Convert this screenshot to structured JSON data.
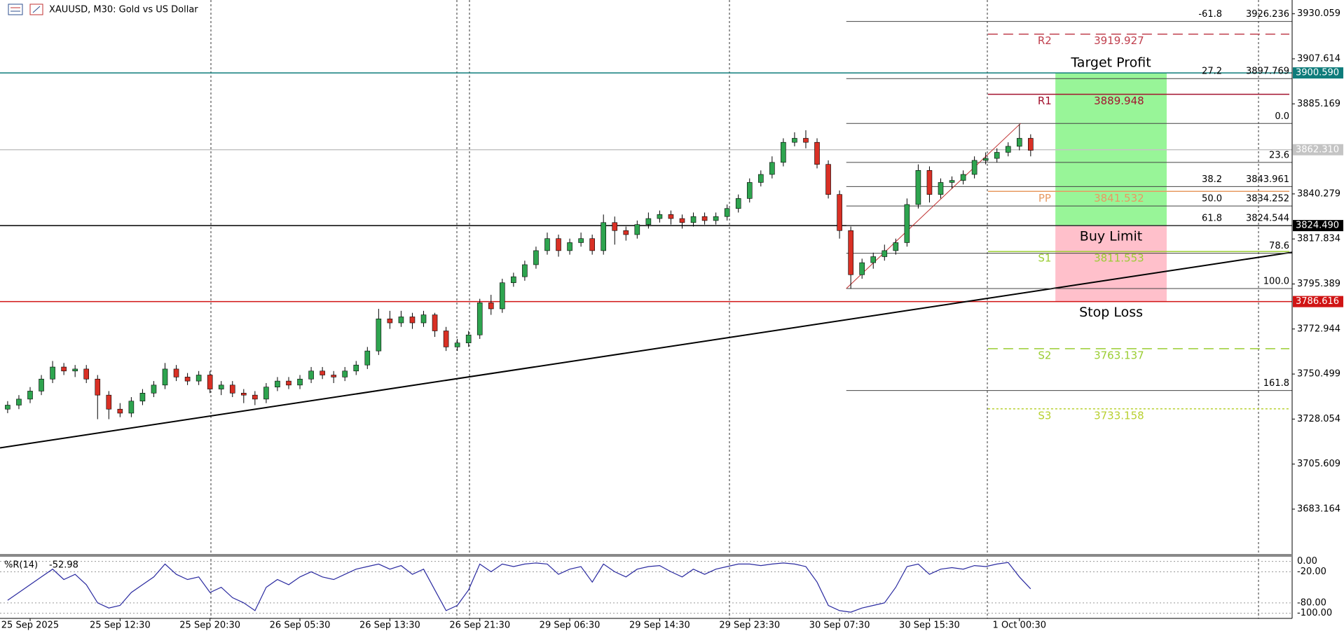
{
  "chart_data": {
    "type": "candlestick",
    "title": "XAUUSD, M30:  Gold vs US Dollar",
    "xlim": [
      -0.68,
      114.26
    ],
    "ylim": [
      3660.12,
      3936.93
    ],
    "xticks": [
      {
        "value": 2,
        "label": "25 Sep 2025"
      },
      {
        "value": 10,
        "label": "25 Sep 12:30"
      },
      {
        "value": 18,
        "label": "25 Sep 20:30"
      },
      {
        "value": 26,
        "label": "26 Sep 05:30"
      },
      {
        "value": 34,
        "label": "26 Sep 13:30"
      },
      {
        "value": 42,
        "label": "26 Sep 21:30"
      },
      {
        "value": 50,
        "label": "29 Sep 06:30"
      },
      {
        "value": 58,
        "label": "29 Sep 14:30"
      },
      {
        "value": 66,
        "label": "29 Sep 23:30"
      },
      {
        "value": 74,
        "label": "30 Sep 07:30"
      },
      {
        "value": 82,
        "label": "30 Sep 15:30"
      },
      {
        "value": 90,
        "label": "1 Oct 00:30"
      }
    ],
    "yticks": [
      3930.059,
      3907.614,
      3885.169,
      3840.279,
      3817.834,
      3795.389,
      3772.944,
      3750.499,
      3728.054,
      3705.609,
      3683.164
    ],
    "up_color": "#2ea44f",
    "down_color": "#d93025",
    "wick_color": "#000000",
    "open": [
      3733,
      3735,
      3738,
      3742,
      3748,
      3754,
      3752,
      3753,
      3748,
      3740,
      3733,
      3731,
      3737,
      3741,
      3745,
      3753,
      3749,
      3747,
      3750,
      3743,
      3745,
      3741,
      3740,
      3738,
      3744,
      3747,
      3745,
      3748,
      3752,
      3750,
      3749,
      3752,
      3755,
      3762,
      3778,
      3776,
      3779,
      3776,
      3780,
      3772,
      3764,
      3766,
      3770,
      3786,
      3783,
      3796,
      3799,
      3805,
      3812,
      3818,
      3812,
      3816,
      3818,
      3812,
      3826,
      3822,
      3820,
      3825,
      3828,
      3830,
      3828,
      3826,
      3829,
      3827,
      3829,
      3833,
      3838,
      3846,
      3850,
      3856,
      3866,
      3868,
      3866,
      3855,
      3840,
      3822,
      3800,
      3806,
      3809,
      3812,
      3816,
      3835,
      3852,
      3840,
      3846,
      3847,
      3850,
      3857,
      3858,
      3861,
      3864,
      3868
    ],
    "high": [
      3737,
      3740,
      3744,
      3750,
      3757,
      3756,
      3755,
      3755,
      3750,
      3742,
      3736,
      3739,
      3743,
      3747,
      3756,
      3755,
      3751,
      3752,
      3752,
      3747,
      3747,
      3743,
      3742,
      3746,
      3749,
      3749,
      3750,
      3754,
      3754,
      3752,
      3754,
      3757,
      3764,
      3783,
      3782,
      3782,
      3781,
      3782,
      3781,
      3774,
      3768,
      3772,
      3788,
      3790,
      3798,
      3801,
      3807,
      3814,
      3821,
      3820,
      3818,
      3821,
      3820,
      3830,
      3829,
      3824,
      3827,
      3831,
      3832,
      3832,
      3830,
      3831,
      3831,
      3831,
      3835,
      3840,
      3848,
      3852,
      3859,
      3868,
      3871,
      3872,
      3868,
      3857,
      3842,
      3824,
      3808,
      3811,
      3815,
      3818,
      3838,
      3855,
      3854,
      3848,
      3849,
      3852,
      3859,
      3861,
      3863,
      3866,
      3875,
      3870
    ],
    "low": [
      3731,
      3733,
      3736,
      3740,
      3746,
      3750,
      3749,
      3746,
      3728,
      3728,
      3729,
      3729,
      3735,
      3739,
      3743,
      3747,
      3745,
      3745,
      3741,
      3740,
      3739,
      3736,
      3735,
      3736,
      3742,
      3743,
      3743,
      3746,
      3748,
      3746,
      3747,
      3750,
      3753,
      3760,
      3773,
      3774,
      3773,
      3774,
      3769,
      3762,
      3762,
      3764,
      3768,
      3780,
      3781,
      3794,
      3797,
      3803,
      3810,
      3809,
      3810,
      3814,
      3810,
      3810,
      3815,
      3817,
      3818,
      3823,
      3826,
      3825,
      3823,
      3824,
      3825,
      3825,
      3827,
      3831,
      3836,
      3844,
      3848,
      3854,
      3864,
      3863,
      3853,
      3838,
      3818,
      3793,
      3798,
      3803,
      3807,
      3810,
      3814,
      3833,
      3836,
      3838,
      3843,
      3845,
      3848,
      3855,
      3856,
      3859,
      3862,
      3859
    ],
    "close": [
      3735,
      3738,
      3742,
      3748,
      3754,
      3752,
      3753,
      3748,
      3740,
      3733,
      3731,
      3737,
      3741,
      3745,
      3753,
      3749,
      3747,
      3750,
      3743,
      3745,
      3741,
      3740,
      3738,
      3744,
      3747,
      3745,
      3748,
      3752,
      3750,
      3749,
      3752,
      3755,
      3762,
      3778,
      3776,
      3779,
      3776,
      3780,
      3772,
      3764,
      3766,
      3770,
      3786,
      3783,
      3796,
      3799,
      3805,
      3812,
      3818,
      3812,
      3816,
      3818,
      3812,
      3826,
      3822,
      3820,
      3825,
      3828,
      3830,
      3828,
      3826,
      3829,
      3827,
      3829,
      3833,
      3838,
      3846,
      3850,
      3856,
      3866,
      3868,
      3866,
      3855,
      3840,
      3822,
      3800,
      3806,
      3809,
      3812,
      3816,
      3835,
      3852,
      3840,
      3846,
      3847,
      3850,
      3857,
      3858,
      3861,
      3864,
      3868,
      3862
    ],
    "trendline": {
      "x": [
        -0.68,
        114.26
      ],
      "y": [
        3713.7,
        3811.2
      ],
      "color": "#000000"
    },
    "hlines": [
      {
        "price": {
          "value": 3900.59,
          "label": "3900.590"
        },
        "color": "#0e7c7b"
      },
      {
        "price": {
          "value": 3862.31,
          "label": "3862.310"
        },
        "color": "#c4c4c4"
      },
      {
        "price": {
          "value": 3824.49,
          "label": "3824.490"
        },
        "color": "#000000"
      },
      {
        "price": 3786.616,
        "color": "#d01414",
        "note": "Stop Loss"
      }
    ],
    "zones": [
      {
        "label": "Target Profit",
        "x": [
          93.2,
          103.1
        ],
        "top": 3900.59,
        "bottom": 3824.49,
        "color": "#98f598"
      },
      {
        "label": "Buy Limit",
        "x": [
          93.2,
          103.1
        ],
        "top": 3824.49,
        "bottom": 3786.616,
        "color": "#ffc0cb"
      }
    ],
    "pivots": {
      "x": 87.2,
      "levels": [
        {
          "name": "R2",
          "price": 3919.927,
          "color": "#c0404e",
          "style": "dashed"
        },
        {
          "name": "R1",
          "price": 3889.948,
          "color": "#a3122e",
          "style": "solid"
        },
        {
          "name": "PP",
          "price": 3841.532,
          "color": "#e89a62",
          "style": "solid"
        },
        {
          "name": "S1",
          "price": 3811.553,
          "color": "#9acd32",
          "style": "solid"
        },
        {
          "name": "S2",
          "price": 3763.137,
          "color": "#9acd32",
          "style": "dashed"
        },
        {
          "name": "S3",
          "price": 3733.158,
          "color": "#b8d030",
          "style": "dotted"
        }
      ]
    },
    "fibo": {
      "x": [
        74.6,
        90.1
      ],
      "color": "#c03030",
      "levels": [
        {
          "level": -61.8,
          "price_label": 3926.236
        },
        {
          "level": 27.2,
          "price_label": 3897.769
        },
        {
          "level": {
            "value": 0,
            "label": "0.0"
          },
          "price": 3875.387
        },
        {
          "level": 23.6,
          "price": 3855.97
        },
        {
          "level": 38.2,
          "price_label": 3843.961
        },
        {
          "level": {
            "value": 50,
            "label": "50.0"
          },
          "price_label": 3834.252
        },
        {
          "level": 61.8,
          "price_label": 3824.544
        },
        {
          "level": 78.6,
          "price": 3810.72
        },
        {
          "level": {
            "value": 100,
            "label": "100.0"
          },
          "price": 3793.117
        },
        {
          "level": 161.8,
          "price": 3742.27
        }
      ]
    },
    "williams": {
      "name": "%R(14)",
      "color": "#2a2aa0",
      "ylim": [
        -110,
        11.7
      ],
      "yticks": [
        {
          "value": 0,
          "label": "0.00"
        },
        {
          "value": -20,
          "label": "-20.00"
        },
        {
          "value": -80,
          "label": "-80.00"
        },
        {
          "value": -100,
          "label": "-100.00"
        }
      ],
      "values": [
        -75,
        -60,
        -45,
        -30,
        -15,
        -35,
        -25,
        -45,
        -80,
        -90,
        -85,
        -60,
        -45,
        -30,
        -5,
        -25,
        -35,
        -30,
        -60,
        -50,
        -70,
        -80,
        -95,
        -50,
        -35,
        -45,
        -30,
        -20,
        -30,
        -35,
        -25,
        -15,
        -10,
        -5,
        -15,
        -8,
        -25,
        -15,
        -55,
        -95,
        -85,
        -55,
        -5,
        -20,
        -5,
        -10,
        -5,
        -3,
        -5,
        -25,
        -15,
        -10,
        -40,
        -5,
        -20,
        -30,
        -15,
        -10,
        -8,
        -20,
        -30,
        -15,
        -25,
        -15,
        -10,
        -5,
        -5,
        -8,
        -5,
        -3,
        -5,
        -10,
        -40,
        -85,
        -95,
        -98,
        -90,
        -85,
        -80,
        -50,
        -10,
        -5,
        -25,
        -15,
        -12,
        -15,
        -8,
        -10,
        -5,
        -2,
        -30,
        -52.98
      ]
    }
  }
}
